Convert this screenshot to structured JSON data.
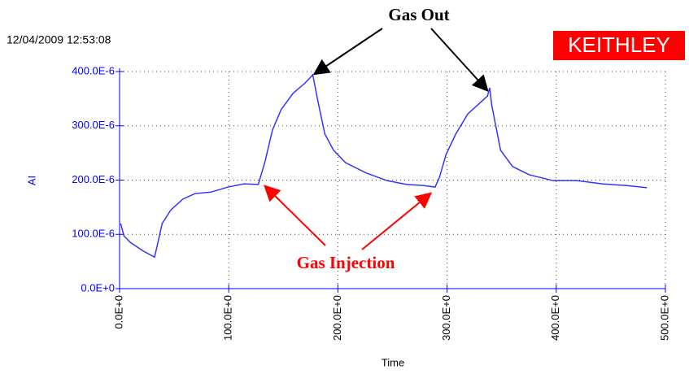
{
  "chart_data": {
    "type": "line",
    "timestamp": "12/04/2009 12:53:08",
    "logo": "KEITHLEY",
    "xlabel": "Time",
    "ylabel": "AI",
    "annotations": [
      "Gas Out",
      "Gas Injection"
    ],
    "xlim": [
      0,
      500
    ],
    "ylim": [
      0,
      0.0004
    ],
    "xticks": [
      {
        "value": 0,
        "label": "0.0E+0"
      },
      {
        "value": 100,
        "label": "100.0E+0"
      },
      {
        "value": 200,
        "label": "200.0E+0"
      },
      {
        "value": 300,
        "label": "300.0E+0"
      },
      {
        "value": 400,
        "label": "400.0E+0"
      },
      {
        "value": 500,
        "label": "500.0E+0"
      }
    ],
    "yticks": [
      {
        "value": 0,
        "label": "0.0E+0"
      },
      {
        "value": 0.0001,
        "label": "100.0E-6"
      },
      {
        "value": 0.0002,
        "label": "200.0E-6"
      },
      {
        "value": 0.0003,
        "label": "300.0E-6"
      },
      {
        "value": 0.0004,
        "label": "400.0E-6"
      }
    ],
    "grid": true,
    "series": [
      {
        "color": "#3333ff",
        "x": [
          1,
          4,
          10,
          21,
          32,
          34,
          39,
          47,
          58,
          69,
          84,
          99,
          114,
          127,
          133,
          140,
          148,
          159,
          170,
          177,
          181,
          188,
          196,
          207,
          226,
          245,
          263,
          278,
          289,
          293,
          299,
          308,
          319,
          330,
          337,
          339,
          341,
          349,
          360,
          375,
          397,
          419,
          442,
          464,
          483
        ],
        "values": [
          0.00012,
          9.7e-05,
          8.5e-05,
          7e-05,
          5.8e-05,
          7.5e-05,
          0.00012,
          0.000145,
          0.000165,
          0.000175,
          0.000178,
          0.000187,
          0.000193,
          0.000192,
          0.000232,
          0.000292,
          0.00033,
          0.00036,
          0.000379,
          0.000394,
          0.000352,
          0.000285,
          0.000255,
          0.000232,
          0.000213,
          0.000199,
          0.000192,
          0.00019,
          0.000187,
          0.000205,
          0.000247,
          0.000285,
          0.000322,
          0.000342,
          0.000355,
          0.00037,
          0.000337,
          0.000255,
          0.000225,
          0.00021,
          0.000199,
          0.000199,
          0.000193,
          0.00019,
          0.000186
        ]
      }
    ]
  }
}
